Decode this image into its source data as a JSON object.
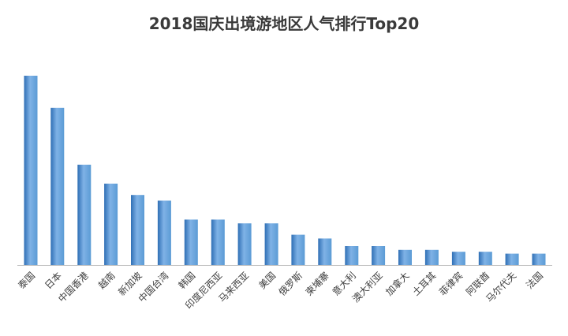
{
  "chart_data": {
    "type": "bar",
    "title": "2018国庆出境游地区人气排行Top20",
    "xlabel": "",
    "ylabel": "",
    "categories": [
      "泰国",
      "日本",
      "中国香港",
      "越南",
      "新加坡",
      "中国台湾",
      "韩国",
      "印度尼西亚",
      "马来西亚",
      "美国",
      "俄罗斯",
      "柬埔寨",
      "意大利",
      "澳大利亚",
      "加拿大",
      "土耳其",
      "菲律宾",
      "阿联酋",
      "马尔代夫",
      "法国"
    ],
    "values": [
      100,
      83,
      53,
      43,
      37,
      34,
      24,
      24,
      22,
      22,
      16,
      14,
      10,
      10,
      8,
      8,
      7,
      7,
      6,
      6
    ],
    "ylim": [
      0,
      100
    ],
    "grid": false,
    "legend": "none",
    "bar_color_top": "#7fb2e6",
    "bar_color_mid": "#5b9bd5",
    "bar_color_bottom": "#2f6fb5",
    "axis_color": "#bfbfbf",
    "label_color": "#404040"
  }
}
